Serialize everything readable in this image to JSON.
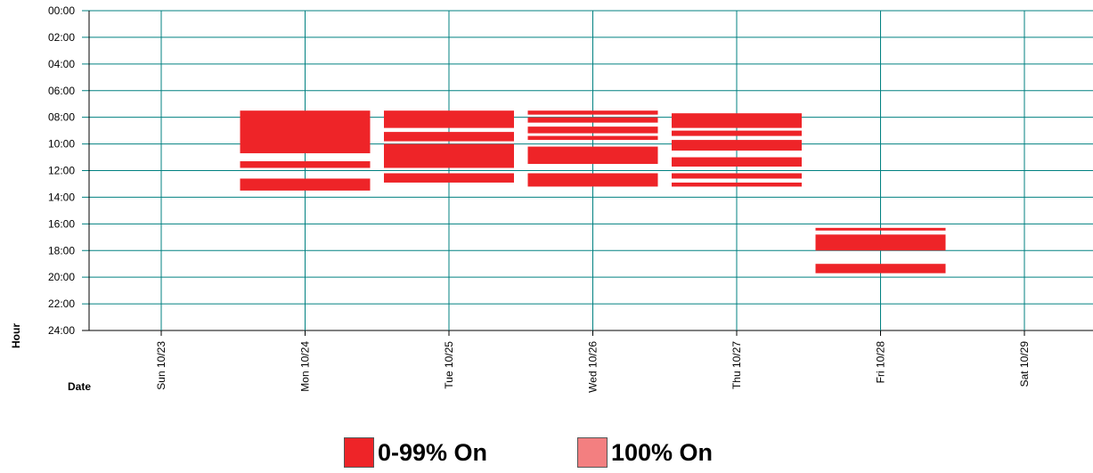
{
  "chart_data": {
    "type": "heatmap",
    "xlabel": "Date",
    "ylabel": "Hour",
    "y_tick_labels": [
      "00:00",
      "02:00",
      "04:00",
      "06:00",
      "08:00",
      "10:00",
      "12:00",
      "14:00",
      "16:00",
      "18:00",
      "20:00",
      "22:00",
      "24:00"
    ],
    "ylim": [
      0,
      24
    ],
    "categories": [
      "Sun 10/23",
      "Mon 10/24",
      "Tue 10/25",
      "Wed 10/26",
      "Thu 10/27",
      "Fri 10/28",
      "Sat 10/29"
    ],
    "grid": true,
    "series": [
      {
        "name": "0-99% On",
        "color": "#ee2428",
        "intervals": [
          {
            "day": "Mon 10/24",
            "start": 7.5,
            "end": 10.7
          },
          {
            "day": "Mon 10/24",
            "start": 11.3,
            "end": 11.8
          },
          {
            "day": "Mon 10/24",
            "start": 12.6,
            "end": 13.5
          },
          {
            "day": "Tue 10/25",
            "start": 7.5,
            "end": 8.8
          },
          {
            "day": "Tue 10/25",
            "start": 9.1,
            "end": 9.8
          },
          {
            "day": "Tue 10/25",
            "start": 10.0,
            "end": 11.8
          },
          {
            "day": "Tue 10/25",
            "start": 12.2,
            "end": 12.9
          },
          {
            "day": "Wed 10/26",
            "start": 7.5,
            "end": 7.8
          },
          {
            "day": "Wed 10/26",
            "start": 8.0,
            "end": 8.4
          },
          {
            "day": "Wed 10/26",
            "start": 8.7,
            "end": 9.2
          },
          {
            "day": "Wed 10/26",
            "start": 9.4,
            "end": 9.7
          },
          {
            "day": "Wed 10/26",
            "start": 10.2,
            "end": 11.5
          },
          {
            "day": "Wed 10/26",
            "start": 12.2,
            "end": 13.2
          },
          {
            "day": "Thu 10/27",
            "start": 7.7,
            "end": 8.8
          },
          {
            "day": "Thu 10/27",
            "start": 9.0,
            "end": 9.4
          },
          {
            "day": "Thu 10/27",
            "start": 9.7,
            "end": 10.5
          },
          {
            "day": "Thu 10/27",
            "start": 11.0,
            "end": 11.7
          },
          {
            "day": "Thu 10/27",
            "start": 12.2,
            "end": 12.6
          },
          {
            "day": "Thu 10/27",
            "start": 12.9,
            "end": 13.2
          },
          {
            "day": "Fri 10/28",
            "start": 16.3,
            "end": 16.5
          },
          {
            "day": "Fri 10/28",
            "start": 16.8,
            "end": 18.0
          },
          {
            "day": "Fri 10/28",
            "start": 19.0,
            "end": 19.7
          }
        ]
      },
      {
        "name": "100% On",
        "color": "#f37f80",
        "intervals": []
      }
    ]
  }
}
